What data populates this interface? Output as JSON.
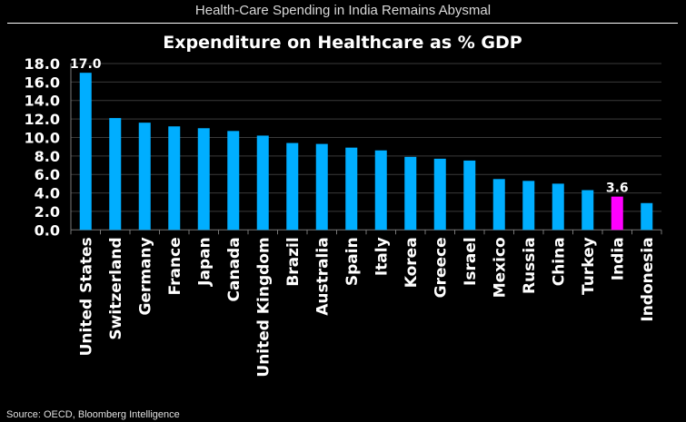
{
  "header": {
    "title": "Health-Care Spending in India Remains Abysmal"
  },
  "source": "Source: OECD, Bloomberg Intelligence",
  "chart_data": {
    "type": "bar",
    "title": "Expenditure on Healthcare as % GDP",
    "xlabel": "",
    "ylabel": "",
    "ylim": [
      0,
      18
    ],
    "yticks": [
      "0.0",
      "2.0",
      "4.0",
      "6.0",
      "8.0",
      "10.0",
      "12.0",
      "14.0",
      "16.0",
      "18.0"
    ],
    "grid": true,
    "categories": [
      "United States",
      "Switzerland",
      "Germany",
      "France",
      "Japan",
      "Canada",
      "United Kingdom",
      "Brazil",
      "Australia",
      "Spain",
      "Italy",
      "Korea",
      "Greece",
      "Israel",
      "Mexico",
      "Russia",
      "China",
      "Turkey",
      "India",
      "Indonesia"
    ],
    "values": [
      17.0,
      12.1,
      11.6,
      11.2,
      11.0,
      10.7,
      10.2,
      9.4,
      9.3,
      8.9,
      8.6,
      7.9,
      7.7,
      7.5,
      5.5,
      5.3,
      5.0,
      4.3,
      3.6,
      2.9
    ],
    "data_labels": {
      "0": "17.0",
      "18": "3.6"
    },
    "colors": {
      "default": "#00aeff",
      "highlight": "#ff00ff",
      "highlight_category": "India",
      "background": "#000000",
      "grid": "#3a3a3a"
    }
  }
}
